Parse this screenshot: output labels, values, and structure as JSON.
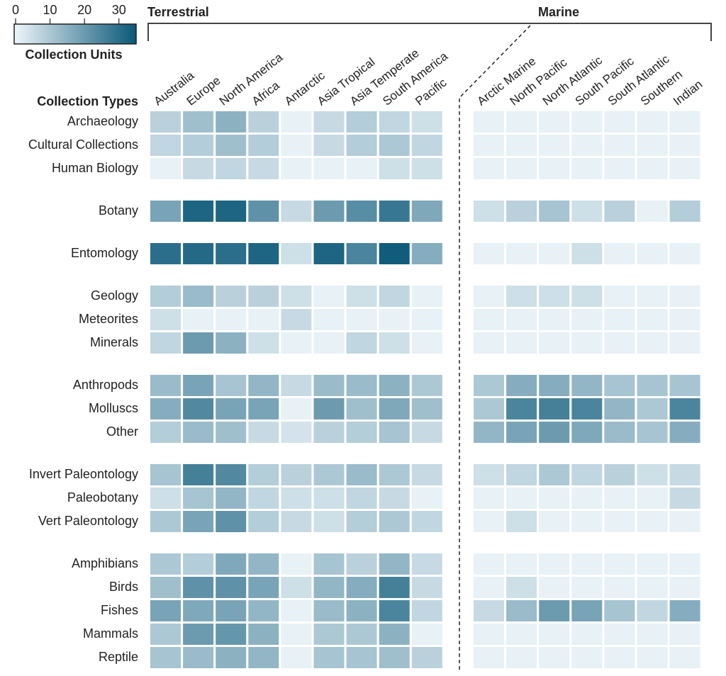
{
  "chart_data": {
    "type": "heatmap",
    "colorbar_title": "Collection Units",
    "clim": [
      0,
      35
    ],
    "cticks": [
      0,
      10,
      20,
      30
    ],
    "colors": [
      "#eef5fa",
      "#0a5878"
    ],
    "y_title": "Collection Types",
    "column_groups": [
      {
        "name": "Terrestrial",
        "categories": [
          "Australia",
          "Europe",
          "North America",
          "Africa",
          "Antarctic",
          "Asia Tropical",
          "Asia Temperate",
          "South America",
          "Pacific"
        ]
      },
      {
        "name": "Marine",
        "categories": [
          "Arctic Marine",
          "North Pacific",
          "North Atlantic",
          "South Pacific",
          "South Atlantic",
          "Southern",
          "Indian"
        ]
      }
    ],
    "row_groups": [
      [
        "Archaeology",
        "Cultural Collections",
        "Human Biology"
      ],
      [
        "Botany"
      ],
      [
        "Entomology"
      ],
      [
        "Geology",
        "Meteorites",
        "Minerals"
      ],
      [
        "Anthropods",
        "Molluscs",
        "Other"
      ],
      [
        "Invert Paleontology",
        "Paleobotany",
        "Vert Paleontology"
      ],
      [
        "Amphibians",
        "Birds",
        "Fishes",
        "Mammals",
        "Reptile"
      ]
    ],
    "values": [
      [
        8,
        12,
        15,
        8,
        1,
        6,
        9,
        7,
        5,
        1,
        1,
        1,
        1,
        1,
        1,
        1
      ],
      [
        7,
        9,
        12,
        9,
        1,
        6,
        9,
        10,
        7,
        1,
        1,
        1,
        1,
        1,
        1,
        1
      ],
      [
        1,
        6,
        7,
        6,
        1,
        1,
        1,
        5,
        5,
        1,
        1,
        1,
        1,
        1,
        1,
        1
      ],
      [
        18,
        32,
        32,
        22,
        6,
        20,
        23,
        28,
        17,
        5,
        8,
        11,
        5,
        8,
        1,
        9
      ],
      [
        30,
        31,
        30,
        32,
        5,
        32,
        25,
        34,
        16,
        1,
        1,
        1,
        5,
        1,
        1,
        1
      ],
      [
        9,
        13,
        8,
        8,
        5,
        1,
        5,
        7,
        1,
        1,
        5,
        5,
        5,
        1,
        1,
        1
      ],
      [
        5,
        1,
        1,
        1,
        6,
        1,
        1,
        1,
        1,
        1,
        1,
        1,
        1,
        1,
        1,
        1
      ],
      [
        7,
        20,
        15,
        5,
        1,
        1,
        7,
        5,
        1,
        1,
        1,
        1,
        1,
        1,
        1,
        1
      ],
      [
        13,
        18,
        11,
        14,
        6,
        13,
        13,
        15,
        10,
        10,
        16,
        16,
        14,
        11,
        11,
        11
      ],
      [
        16,
        24,
        18,
        18,
        1,
        20,
        12,
        17,
        12,
        10,
        25,
        26,
        25,
        14,
        10,
        25
      ],
      [
        9,
        13,
        12,
        6,
        4,
        8,
        9,
        11,
        6,
        14,
        18,
        20,
        17,
        13,
        11,
        16
      ],
      [
        11,
        26,
        24,
        9,
        8,
        10,
        13,
        10,
        6,
        5,
        7,
        10,
        7,
        8,
        5,
        6
      ],
      [
        5,
        11,
        14,
        7,
        5,
        5,
        7,
        6,
        1,
        1,
        1,
        1,
        1,
        1,
        1,
        6
      ],
      [
        10,
        18,
        22,
        9,
        6,
        5,
        9,
        10,
        7,
        1,
        5,
        1,
        1,
        1,
        1,
        1
      ],
      [
        10,
        9,
        17,
        14,
        1,
        11,
        8,
        14,
        6,
        1,
        1,
        1,
        1,
        1,
        1,
        1
      ],
      [
        12,
        22,
        22,
        18,
        5,
        14,
        16,
        26,
        6,
        1,
        5,
        1,
        1,
        1,
        1,
        1
      ],
      [
        18,
        17,
        18,
        14,
        1,
        13,
        15,
        25,
        7,
        6,
        13,
        20,
        18,
        11,
        7,
        16
      ],
      [
        10,
        20,
        21,
        15,
        1,
        10,
        10,
        15,
        1,
        1,
        1,
        1,
        1,
        1,
        1,
        1
      ],
      [
        11,
        13,
        15,
        14,
        1,
        11,
        11,
        12,
        8,
        1,
        1,
        1,
        1,
        1,
        1,
        1
      ]
    ]
  }
}
